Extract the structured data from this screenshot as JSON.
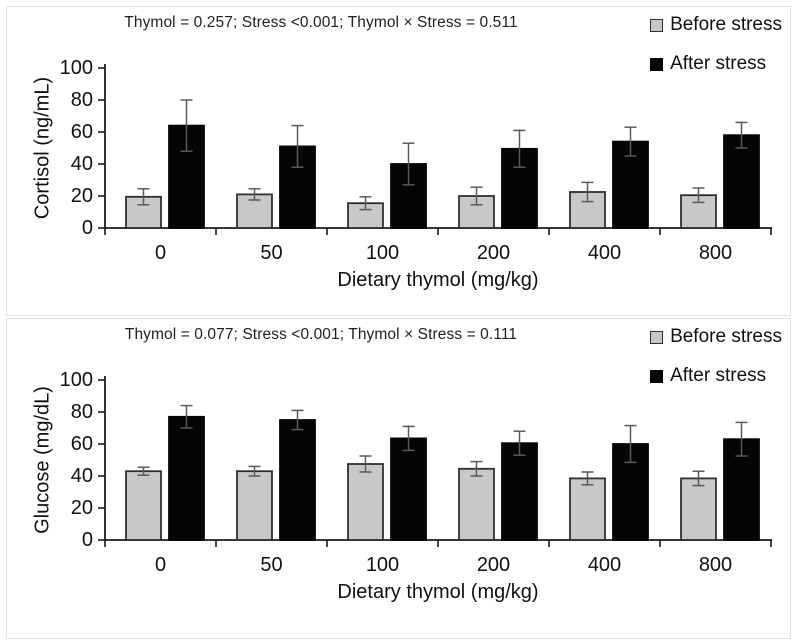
{
  "figure": {
    "colors": {
      "axis": "#1a1a1a",
      "error_bar": "#595959",
      "before_fill": "#c8c8c8",
      "before_border": "#2f2f2f",
      "after_fill": "#050505",
      "panel_border": "#e2e2e2",
      "background": "#ffffff"
    }
  },
  "chart_data": [
    {
      "type": "bar",
      "title": "Thymol = 0.257; Stress <0.001; Thymol × Stress = 0.511",
      "categories": [
        "0",
        "50",
        "100",
        "200",
        "400",
        "800"
      ],
      "series": [
        {
          "name": "Before stress",
          "values": [
            19.5,
            21,
            15.5,
            20,
            22.5,
            20.5
          ],
          "errors": [
            5,
            3.5,
            4,
            5.5,
            6,
            4.5
          ],
          "color": "#c8c8c8",
          "border": "#2f2f2f"
        },
        {
          "name": "After stress",
          "values": [
            64,
            51,
            40,
            49.5,
            54,
            58
          ],
          "errors": [
            16,
            13,
            13,
            11.5,
            9,
            8
          ],
          "color": "#050505",
          "border": "#050505"
        }
      ],
      "xlabel": "Dietary thymol (mg/kg)",
      "ylabel": "Cortisol (ng/mL)",
      "ylim": [
        0,
        100
      ],
      "yticks": [
        0,
        20,
        40,
        60,
        80,
        100
      ],
      "grid": false,
      "legend_position": "top-right",
      "error_bars": true
    },
    {
      "type": "bar",
      "title": "Thymol = 0.077; Stress <0.001; Thymol × Stress = 0.111",
      "categories": [
        "0",
        "50",
        "100",
        "200",
        "400",
        "800"
      ],
      "series": [
        {
          "name": "Before stress",
          "values": [
            43,
            43,
            47.5,
            44.5,
            38.5,
            38.5
          ],
          "errors": [
            2.5,
            3,
            5,
            4.5,
            4,
            4.5
          ],
          "color": "#c8c8c8",
          "border": "#2f2f2f"
        },
        {
          "name": "After stress",
          "values": [
            77,
            75,
            63.5,
            60.5,
            60,
            63
          ],
          "errors": [
            7,
            6,
            7.5,
            7.5,
            11.5,
            10.5
          ],
          "color": "#050505",
          "border": "#050505"
        }
      ],
      "xlabel": "Dietary thymol (mg/kg)",
      "ylabel": "Glucose (mg/dL)",
      "ylim": [
        0,
        100
      ],
      "yticks": [
        0,
        20,
        40,
        60,
        80,
        100
      ],
      "grid": false,
      "legend_position": "top-right",
      "error_bars": true
    }
  ]
}
